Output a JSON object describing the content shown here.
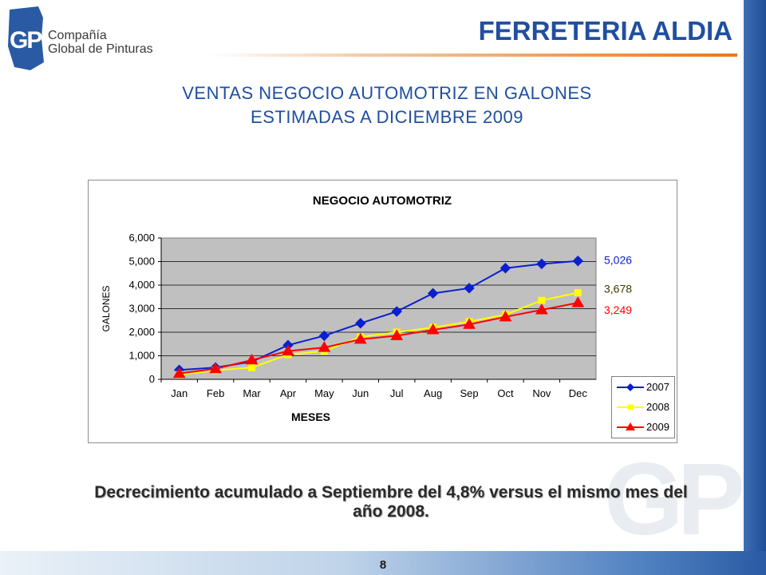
{
  "header": {
    "company_name": "FERRETERIA ALDIA",
    "logo": {
      "mark": "GP",
      "line1": "Compañía",
      "line2": "Global de Pinturas"
    }
  },
  "slide": {
    "title_line1": "VENTAS NEGOCIO AUTOMOTRIZ EN GALONES",
    "title_line2": "ESTIMADAS A DICIEMBRE 2009",
    "caption": "Decrecimiento acumulado a Septiembre del 4,8% versus el mismo mes del año 2008.",
    "page_number": "8",
    "watermark": "GP"
  },
  "colors": {
    "brand_blue": "#1f4fa0",
    "accent_orange": "#e87722",
    "plot_area": "#c0c0c0"
  },
  "chart_data": {
    "type": "line",
    "title": "NEGOCIO AUTOMOTRIZ",
    "xlabel": "MESES",
    "ylabel": "GALONES",
    "categories": [
      "Jan",
      "Feb",
      "Mar",
      "Apr",
      "May",
      "Jun",
      "Jul",
      "Aug",
      "Sep",
      "Oct",
      "Nov",
      "Dec"
    ],
    "ylim": [
      0,
      6000
    ],
    "yticks": [
      "0",
      "1,000",
      "2,000",
      "3,000",
      "4,000",
      "5,000",
      "6,000"
    ],
    "grid": true,
    "legend_position": "bottom-right",
    "series": [
      {
        "name": "2007",
        "color": "#0a1fd0",
        "marker": "diamond",
        "values": [
          400,
          500,
          750,
          1450,
          1850,
          2380,
          2880,
          3650,
          3870,
          4720,
          4900,
          5026
        ],
        "end_label": "5,026",
        "end_label_color": "#0a1fd0"
      },
      {
        "name": "2008",
        "color": "#ffff00",
        "marker": "square",
        "values": [
          200,
          380,
          500,
          1050,
          1200,
          1800,
          2000,
          2200,
          2450,
          2750,
          3350,
          3678
        ],
        "end_label": "3,678",
        "end_label_color": "#3a3a00"
      },
      {
        "name": "2009",
        "color": "#ff0000",
        "marker": "triangle",
        "values": [
          250,
          450,
          820,
          1200,
          1350,
          1700,
          1850,
          2100,
          2330,
          2650,
          2950,
          3249
        ],
        "end_label": "3,249",
        "end_label_color": "#ff0000"
      }
    ]
  }
}
